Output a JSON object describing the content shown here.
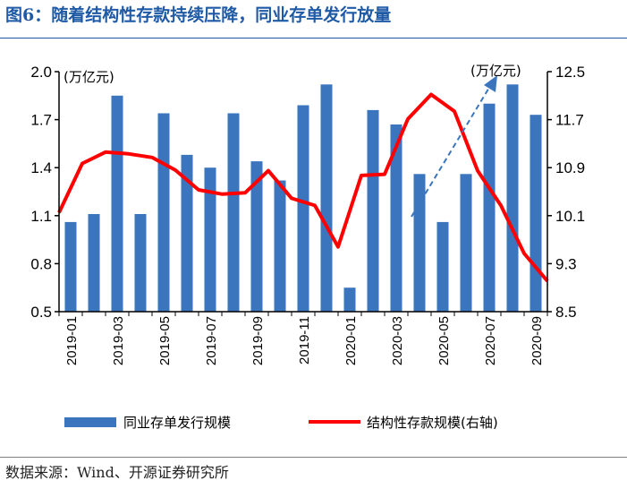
{
  "figure": {
    "title": "图6：随着结构性存款持续压降，同业存单发行放量",
    "source": "数据来源：Wind、开源证券研究所"
  },
  "colors": {
    "title": "#1f5aa6",
    "bar": "#3a75be",
    "line": "#ff0000",
    "arrow": "#3a75be"
  },
  "chart_data": {
    "type": "bar+line",
    "left_unit": "(万亿元)",
    "right_unit": "(万亿元)",
    "left_axis": {
      "min": 0.5,
      "max": 2.0,
      "ticks": [
        "2.0",
        "1.7",
        "1.4",
        "1.1",
        "0.8",
        "0.5"
      ]
    },
    "right_axis": {
      "min": 8.5,
      "max": 12.5,
      "ticks": [
        "12.5",
        "11.7",
        "10.9",
        "10.1",
        "9.3",
        "8.5"
      ]
    },
    "x_tick_labels": [
      "2019-01",
      "2019-03",
      "2019-05",
      "2019-07",
      "2019-09",
      "2019-11",
      "2020-01",
      "2020-03",
      "2020-05",
      "2020-07",
      "2020-09"
    ],
    "series": [
      {
        "name": "同业存单发行规模",
        "type": "bar",
        "axis": "left",
        "values": [
          1.06,
          1.11,
          1.85,
          1.11,
          1.74,
          1.48,
          1.4,
          1.74,
          1.44,
          1.32,
          1.79,
          1.92,
          0.65,
          1.76,
          1.67,
          1.36,
          1.06,
          1.36,
          1.8,
          1.92,
          1.73
        ]
      },
      {
        "name": "结构性存款规模(右轴)",
        "type": "line",
        "axis": "right",
        "values": [
          10.15,
          10.97,
          11.16,
          11.13,
          11.07,
          10.86,
          10.53,
          10.46,
          10.48,
          10.85,
          10.39,
          10.27,
          9.58,
          10.77,
          10.79,
          11.71,
          12.12,
          11.84,
          10.85,
          10.27,
          9.47,
          9.01
        ]
      }
    ]
  },
  "legend": {
    "bar_label": "同业存单发行规模",
    "line_label": "结构性存款规模(右轴)"
  }
}
